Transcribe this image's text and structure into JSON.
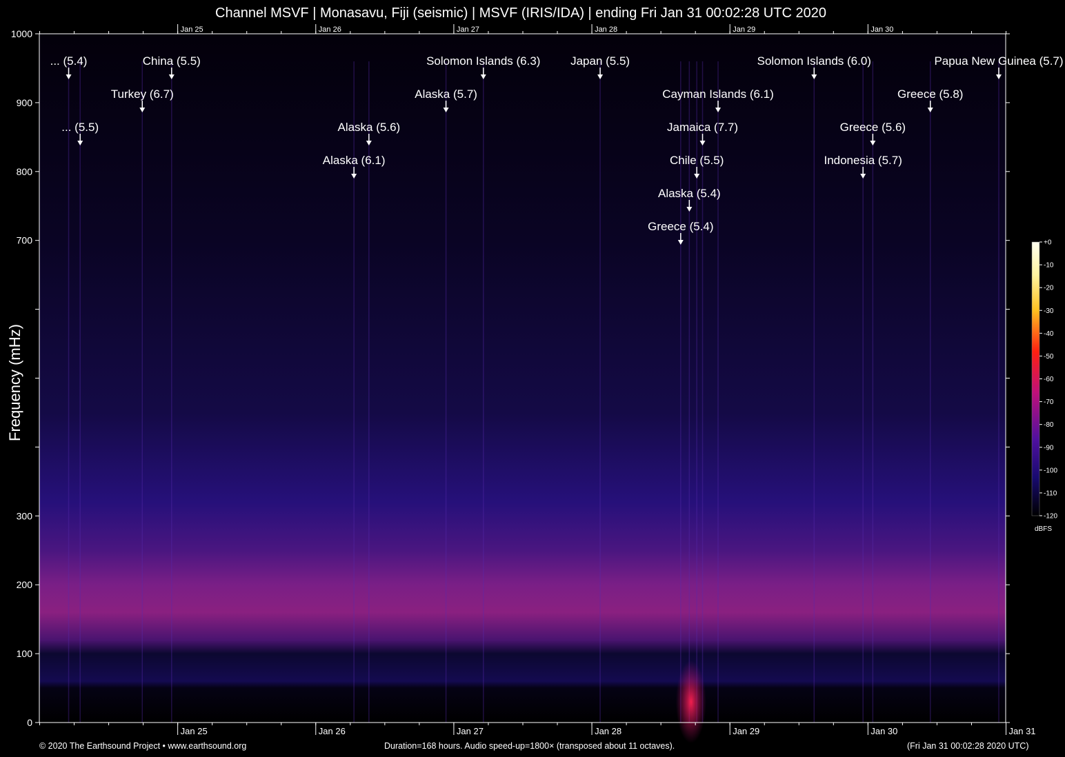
{
  "chart_data": {
    "type": "heatmap",
    "title": "Channel MSVF | Monasavu, Fiji (seismic) | MSVF (IRIS/IDA) | ending Fri Jan 31 00:02:28 UTC 2020",
    "ylabel": "Frequency (mHz)",
    "xlabel": "",
    "ylim": [
      0,
      1000
    ],
    "y_ticks": [
      {
        "value": 0,
        "label": "0"
      },
      {
        "value": 100,
        "label": "100"
      },
      {
        "value": 200,
        "label": "200"
      },
      {
        "value": 300,
        "label": "300"
      },
      {
        "value": 400,
        "label": ""
      },
      {
        "value": 500,
        "label": ""
      },
      {
        "value": 600,
        "label": ""
      },
      {
        "value": 700,
        "label": "700"
      },
      {
        "value": 800,
        "label": "800"
      },
      {
        "value": 900,
        "label": "900"
      },
      {
        "value": 1000,
        "label": "1000"
      }
    ],
    "xlim_hours": [
      0,
      168
    ],
    "x_ticks": [
      {
        "hour": 24.06,
        "label": "Jan 25"
      },
      {
        "hour": 48.06,
        "label": "Jan 26"
      },
      {
        "hour": 72.06,
        "label": "Jan 27"
      },
      {
        "hour": 96.06,
        "label": "Jan 28"
      },
      {
        "hour": 120.06,
        "label": "Jan 29"
      },
      {
        "hour": 144.06,
        "label": "Jan 30"
      },
      {
        "hour": 168.06,
        "label": "Jan 31"
      }
    ],
    "colorbar": {
      "unit": "dBFS",
      "range": [
        -120,
        0
      ],
      "ticks": [
        "+0",
        "-10",
        "-20",
        "-30",
        "-40",
        "-50",
        "-60",
        "-70",
        "-80",
        "-90",
        "-100",
        "-110",
        "-120"
      ]
    },
    "events": [
      {
        "label": "... (5.4)",
        "hour": 5.1,
        "row": 1
      },
      {
        "label": "China (5.5)",
        "hour": 23.0,
        "row": 1
      },
      {
        "label": "Turkey (6.7)",
        "hour": 17.9,
        "row": 2
      },
      {
        "label": "... (5.5)",
        "hour": 7.1,
        "row": 3
      },
      {
        "label": "Solomon Islands (6.3)",
        "hour": 77.2,
        "row": 1
      },
      {
        "label": "Alaska (5.7)",
        "hour": 70.7,
        "row": 2
      },
      {
        "label": "Alaska (5.6)",
        "hour": 57.3,
        "row": 3
      },
      {
        "label": "Alaska (6.1)",
        "hour": 54.7,
        "row": 4
      },
      {
        "label": "Japan (5.5)",
        "hour": 97.5,
        "row": 1
      },
      {
        "label": "Cayman Islands (6.1)",
        "hour": 118.0,
        "row": 2
      },
      {
        "label": "Jamaica (7.7)",
        "hour": 115.3,
        "row": 3
      },
      {
        "label": "Chile (5.5)",
        "hour": 114.3,
        "row": 4
      },
      {
        "label": "Alaska (5.4)",
        "hour": 113.0,
        "row": 5
      },
      {
        "label": "Greece (5.4)",
        "hour": 111.5,
        "row": 6
      },
      {
        "label": "Solomon Islands (6.0)",
        "hour": 134.7,
        "row": 1
      },
      {
        "label": "Indonesia (5.7)",
        "hour": 143.2,
        "row": 4
      },
      {
        "label": "Greece (5.6)",
        "hour": 144.9,
        "row": 3
      },
      {
        "label": "Greece (5.8)",
        "hour": 154.9,
        "row": 2
      },
      {
        "label": "Papua New Guinea (5.7)",
        "hour": 166.8,
        "row": 1
      }
    ]
  },
  "footer": {
    "left": "© 2020 The Earthsound Project • www.earthsound.org",
    "middle": "Duration=168 hours. Audio speed-up=1800× (transposed about 11 octaves).",
    "right": "(Fri Jan 31 00:02:28 2020 UTC)"
  }
}
